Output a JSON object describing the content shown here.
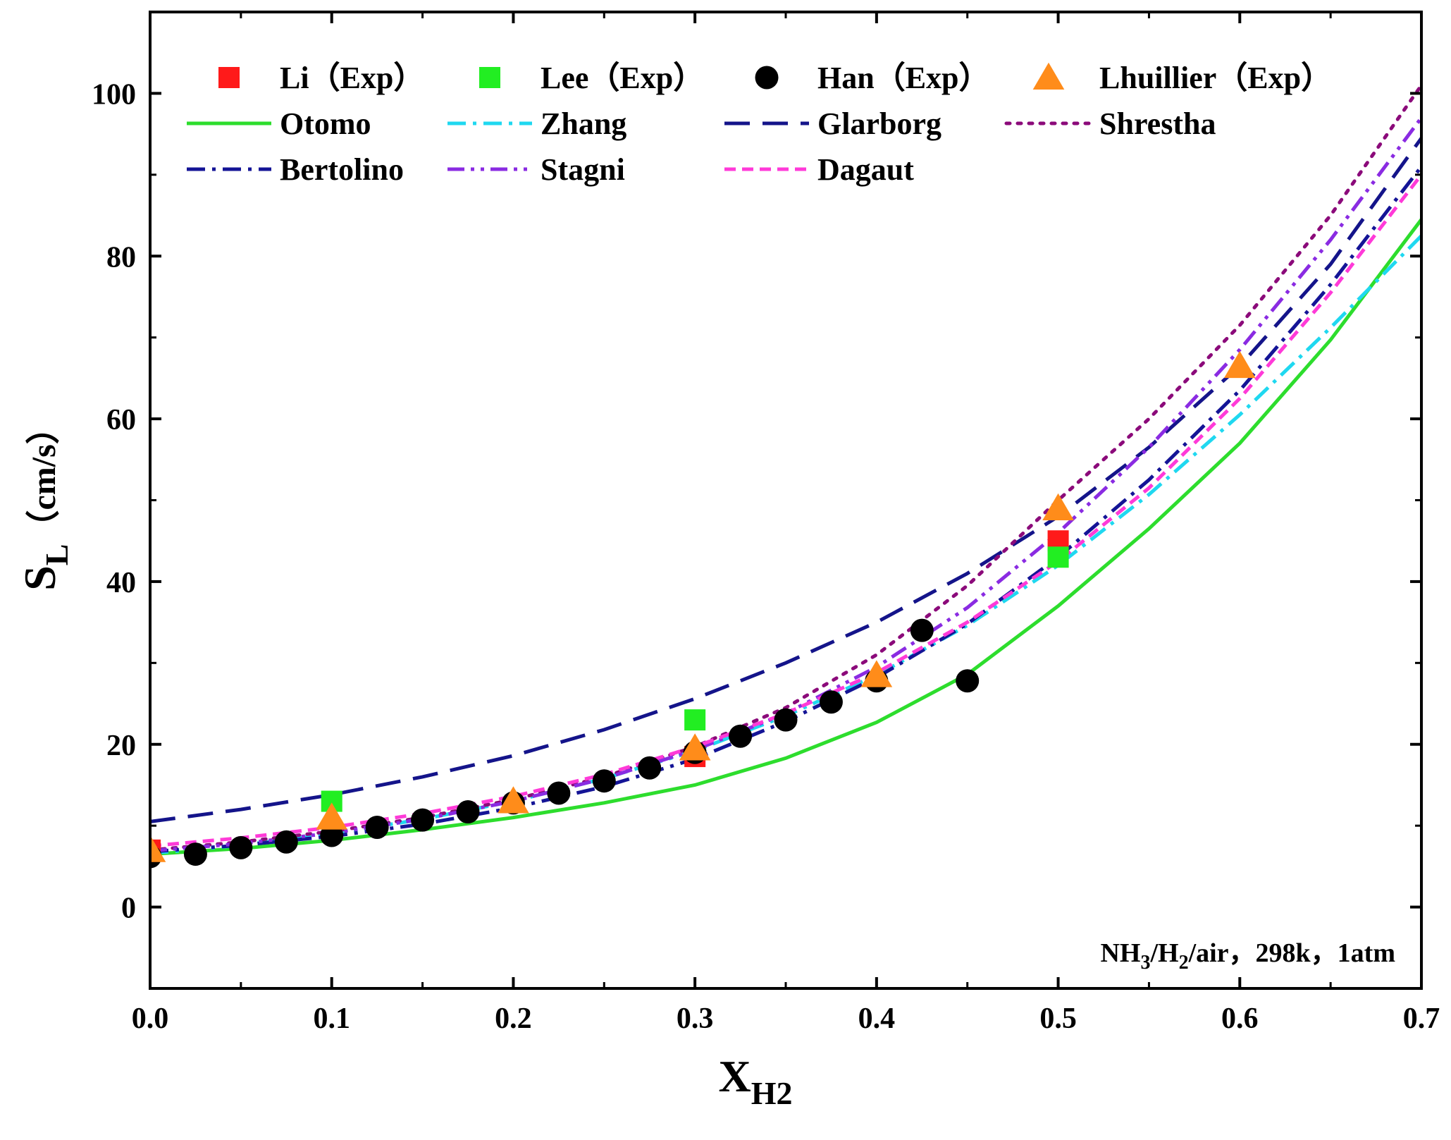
{
  "chart_data": {
    "type": "line",
    "title": "",
    "xlabel": {
      "main": "X",
      "sub": "H2"
    },
    "ylabel": {
      "main": "S",
      "sub": "L",
      "unit": "（cm/s）"
    },
    "xlim": [
      0,
      0.7
    ],
    "ylim": [
      -10,
      110
    ],
    "xticks": [
      0.0,
      0.1,
      0.2,
      0.3,
      0.4,
      0.5,
      0.6,
      0.7
    ],
    "xtick_labels": [
      "0.0",
      "0.1",
      "0.2",
      "0.3",
      "0.4",
      "0.5",
      "0.6",
      "0.7"
    ],
    "yticks": [
      0,
      20,
      40,
      60,
      80,
      100
    ],
    "ytick_labels": [
      "0",
      "20",
      "40",
      "60",
      "80",
      "100"
    ],
    "grid": false,
    "legend_position": "top",
    "annotation": {
      "p1": "NH",
      "s1": "3",
      "p2": "/H",
      "s2": "2",
      "p3": "/air，298k，1atm"
    },
    "series": [
      {
        "name": "Li（Exp）",
        "kind": "marker",
        "marker": "square",
        "color": "#ff1a1a",
        "points": [
          [
            0.0,
            7.0
          ],
          [
            0.3,
            18.5
          ],
          [
            0.5,
            45.0
          ]
        ]
      },
      {
        "name": "Lee（Exp）",
        "kind": "marker",
        "marker": "square",
        "color": "#22ee22",
        "points": [
          [
            0.1,
            13.0
          ],
          [
            0.3,
            23.0
          ],
          [
            0.5,
            43.0
          ]
        ]
      },
      {
        "name": "Han（Exp）",
        "kind": "marker",
        "marker": "circle",
        "color": "#000000",
        "points": [
          [
            0.0,
            6.2
          ],
          [
            0.025,
            6.5
          ],
          [
            0.05,
            7.3
          ],
          [
            0.075,
            8.0
          ],
          [
            0.1,
            8.8
          ],
          [
            0.125,
            9.8
          ],
          [
            0.15,
            10.7
          ],
          [
            0.175,
            11.7
          ],
          [
            0.2,
            12.8
          ],
          [
            0.225,
            14.0
          ],
          [
            0.25,
            15.5
          ],
          [
            0.275,
            17.1
          ],
          [
            0.3,
            19.0
          ],
          [
            0.325,
            21.0
          ],
          [
            0.35,
            23.0
          ],
          [
            0.375,
            25.2
          ],
          [
            0.4,
            27.8
          ],
          [
            0.425,
            34.0
          ],
          [
            0.45,
            27.8
          ]
        ]
      },
      {
        "name": "Lhuillier（Exp）",
        "kind": "marker",
        "marker": "triangle",
        "color": "#ff8c1a",
        "points": [
          [
            0.0,
            7.0
          ],
          [
            0.1,
            11.0
          ],
          [
            0.2,
            13.0
          ],
          [
            0.3,
            19.5
          ],
          [
            0.4,
            28.5
          ],
          [
            0.5,
            49.0
          ],
          [
            0.6,
            66.5
          ]
        ]
      },
      {
        "name": "Otomo",
        "kind": "line",
        "dash": "solid",
        "color": "#2ddd2d",
        "points": [
          [
            0.0,
            6.5
          ],
          [
            0.05,
            7.2
          ],
          [
            0.1,
            8.2
          ],
          [
            0.15,
            9.5
          ],
          [
            0.2,
            11.0
          ],
          [
            0.25,
            12.8
          ],
          [
            0.3,
            15.0
          ],
          [
            0.35,
            18.3
          ],
          [
            0.4,
            22.7
          ],
          [
            0.45,
            28.6
          ],
          [
            0.5,
            37.0
          ],
          [
            0.55,
            46.5
          ],
          [
            0.6,
            57.0
          ],
          [
            0.65,
            69.7
          ],
          [
            0.7,
            84.5
          ]
        ]
      },
      {
        "name": "Zhang",
        "kind": "line",
        "dash": "dashdot",
        "color": "#1fd8f0",
        "points": [
          [
            0.0,
            6.6
          ],
          [
            0.05,
            7.6
          ],
          [
            0.1,
            9.0
          ],
          [
            0.15,
            10.8
          ],
          [
            0.2,
            13.0
          ],
          [
            0.25,
            15.8
          ],
          [
            0.3,
            19.2
          ],
          [
            0.35,
            23.5
          ],
          [
            0.4,
            28.5
          ],
          [
            0.45,
            34.6
          ],
          [
            0.5,
            42.0
          ],
          [
            0.55,
            50.7
          ],
          [
            0.6,
            60.5
          ],
          [
            0.65,
            71.2
          ],
          [
            0.7,
            82.5
          ]
        ]
      },
      {
        "name": "Glarborg",
        "kind": "line",
        "dash": "longdash",
        "color": "#14148a",
        "points": [
          [
            0.0,
            10.5
          ],
          [
            0.05,
            12.0
          ],
          [
            0.1,
            13.8
          ],
          [
            0.15,
            16.0
          ],
          [
            0.2,
            18.6
          ],
          [
            0.25,
            21.8
          ],
          [
            0.3,
            25.6
          ],
          [
            0.35,
            30.0
          ],
          [
            0.4,
            35.0
          ],
          [
            0.45,
            41.0
          ],
          [
            0.5,
            48.0
          ],
          [
            0.55,
            56.5
          ],
          [
            0.6,
            66.5
          ],
          [
            0.65,
            79.0
          ],
          [
            0.7,
            94.5
          ]
        ]
      },
      {
        "name": "Shrestha",
        "kind": "line",
        "dash": "dotted",
        "color": "#8b0a7a",
        "points": [
          [
            0.0,
            7.0
          ],
          [
            0.05,
            8.0
          ],
          [
            0.1,
            9.3
          ],
          [
            0.15,
            11.0
          ],
          [
            0.2,
            13.2
          ],
          [
            0.25,
            16.0
          ],
          [
            0.3,
            19.7
          ],
          [
            0.35,
            24.5
          ],
          [
            0.4,
            31.0
          ],
          [
            0.45,
            39.5
          ],
          [
            0.5,
            50.0
          ],
          [
            0.55,
            60.0
          ],
          [
            0.6,
            71.5
          ],
          [
            0.65,
            85.0
          ],
          [
            0.7,
            101.0
          ]
        ]
      },
      {
        "name": "Bertolino",
        "kind": "line",
        "dash": "dashdot",
        "color": "#141496",
        "points": [
          [
            0.0,
            6.8
          ],
          [
            0.05,
            7.6
          ],
          [
            0.1,
            8.7
          ],
          [
            0.15,
            10.2
          ],
          [
            0.2,
            12.2
          ],
          [
            0.25,
            14.8
          ],
          [
            0.3,
            18.2
          ],
          [
            0.35,
            22.8
          ],
          [
            0.4,
            28.2
          ],
          [
            0.45,
            34.8
          ],
          [
            0.5,
            43.0
          ],
          [
            0.55,
            52.5
          ],
          [
            0.6,
            63.5
          ],
          [
            0.65,
            76.5
          ],
          [
            0.7,
            91.0
          ]
        ]
      },
      {
        "name": "Stagni",
        "kind": "line",
        "dash": "dashdotdot",
        "color": "#8a2be2",
        "points": [
          [
            0.0,
            6.9
          ],
          [
            0.05,
            7.8
          ],
          [
            0.1,
            9.1
          ],
          [
            0.15,
            10.8
          ],
          [
            0.2,
            13.0
          ],
          [
            0.25,
            15.8
          ],
          [
            0.3,
            19.3
          ],
          [
            0.35,
            23.8
          ],
          [
            0.4,
            29.5
          ],
          [
            0.45,
            36.8
          ],
          [
            0.5,
            46.0
          ],
          [
            0.55,
            56.5
          ],
          [
            0.6,
            68.5
          ],
          [
            0.65,
            82.0
          ],
          [
            0.7,
            97.0
          ]
        ]
      },
      {
        "name": "Dagaut",
        "kind": "line",
        "dash": "shortdash",
        "color": "#ff3ad8",
        "points": [
          [
            0.0,
            7.5
          ],
          [
            0.05,
            8.5
          ],
          [
            0.1,
            9.8
          ],
          [
            0.15,
            11.5
          ],
          [
            0.2,
            13.6
          ],
          [
            0.25,
            16.3
          ],
          [
            0.3,
            19.7
          ],
          [
            0.35,
            23.8
          ],
          [
            0.4,
            28.8
          ],
          [
            0.45,
            35.0
          ],
          [
            0.5,
            42.5
          ],
          [
            0.55,
            51.5
          ],
          [
            0.6,
            62.5
          ],
          [
            0.65,
            75.5
          ],
          [
            0.7,
            90.0
          ]
        ]
      }
    ]
  }
}
